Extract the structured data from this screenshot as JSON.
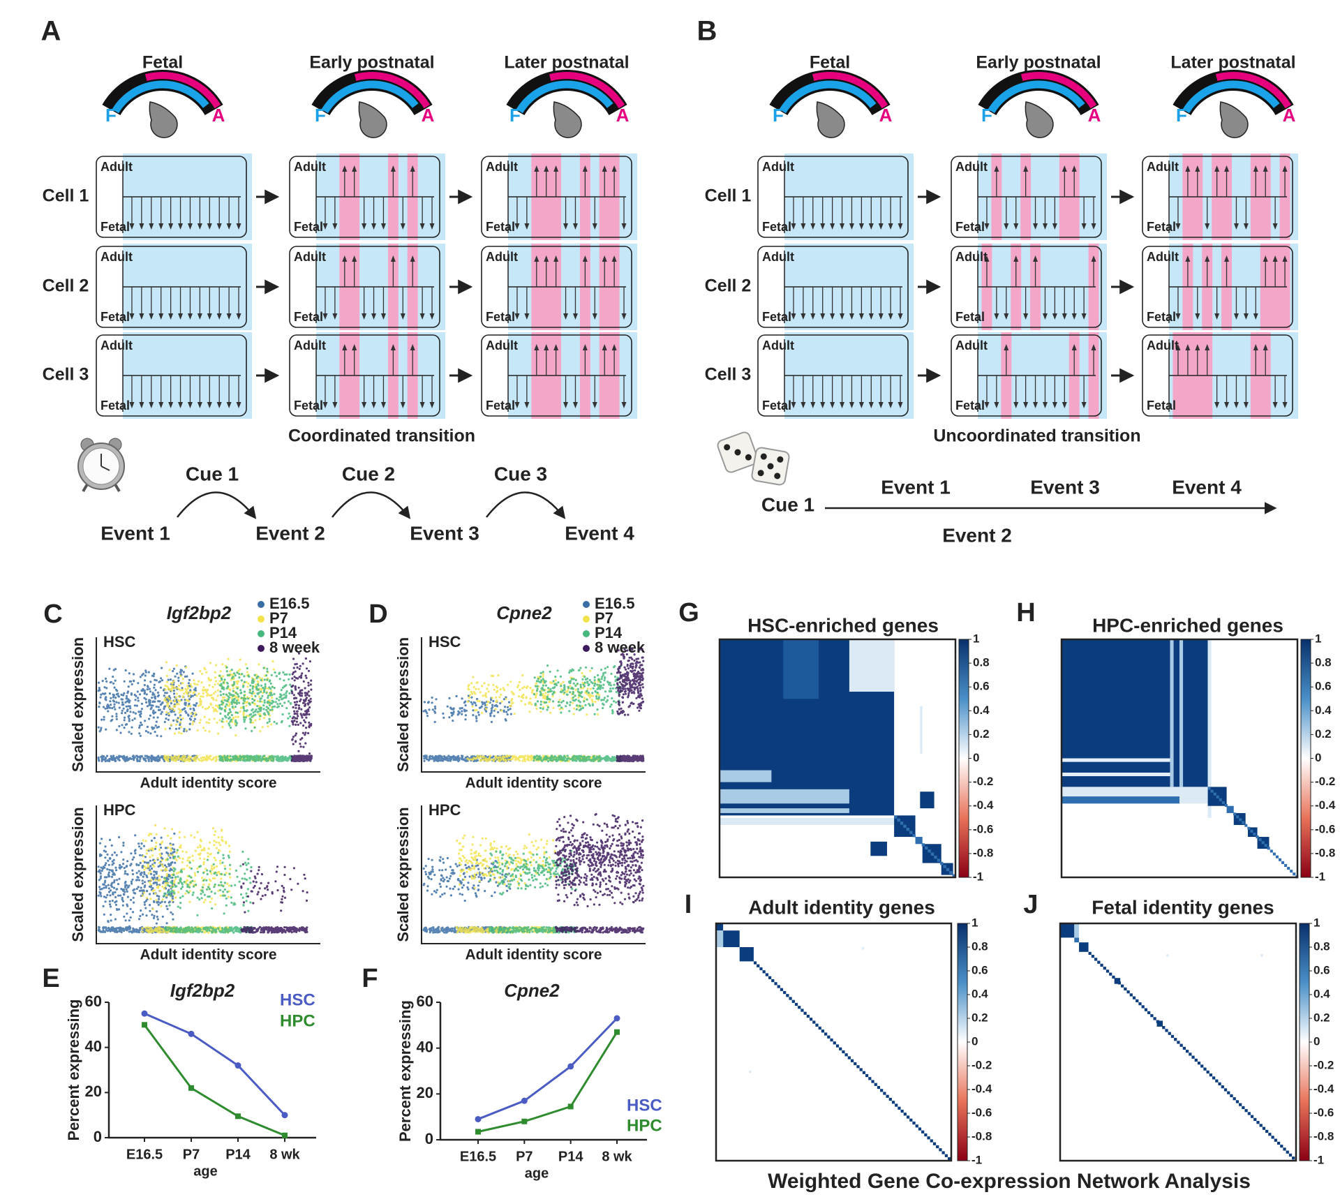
{
  "panel_A": {
    "label": "A",
    "stages": [
      "Fetal",
      "Early postnatal",
      "Later postnatal"
    ],
    "dial": [
      "F",
      "A"
    ],
    "cells": [
      "Cell 1",
      "Cell 2",
      "Cell 3"
    ],
    "box_labels": [
      "Adult",
      "Fetal"
    ],
    "caption": "Coordinated transition",
    "cues": [
      "Cue 1",
      "Cue 2",
      "Cue 3"
    ],
    "events": [
      "Event 1",
      "Event 2",
      "Event 3",
      "Event 4"
    ]
  },
  "panel_B": {
    "label": "B",
    "stages": [
      "Fetal",
      "Early postnatal",
      "Later postnatal"
    ],
    "dial": [
      "F",
      "A"
    ],
    "cells": [
      "Cell 1",
      "Cell 2",
      "Cell 3"
    ],
    "box_labels": [
      "Adult",
      "Fetal"
    ],
    "caption": "Uncoordinated transition",
    "cue": "Cue 1",
    "events": [
      "Event 1",
      "Event 3",
      "Event 4"
    ],
    "event_below": "Event 2"
  },
  "scatter_panels": [
    {
      "label": "C",
      "gene": "Igf2bp2",
      "legend": [
        {
          "name": "E16.5",
          "color": "#3a6ea5"
        },
        {
          "name": "P7",
          "color": "#f2e34c"
        },
        {
          "name": "P14",
          "color": "#45b87c"
        },
        {
          "name": "8 week",
          "color": "#3d1a5e"
        }
      ],
      "rows": [
        "HSC",
        "HPC"
      ],
      "ylabel": "Scaled expression",
      "xlabel": "Adult identity score"
    },
    {
      "label": "D",
      "gene": "Cpne2",
      "legend": [
        {
          "name": "E16.5",
          "color": "#3a6ea5"
        },
        {
          "name": "P7",
          "color": "#f2e34c"
        },
        {
          "name": "P14",
          "color": "#45b87c"
        },
        {
          "name": "8 week",
          "color": "#3d1a5e"
        }
      ],
      "rows": [
        "HSC",
        "HPC"
      ],
      "ylabel": "Scaled expression",
      "xlabel": "Adult identity score"
    }
  ],
  "chart_data": [
    {
      "type": "line",
      "label": "E",
      "title": "Igf2bp2",
      "xlabel": "age",
      "ylabel": "Percent expressing",
      "categories": [
        "E16.5",
        "P7",
        "P14",
        "8 wk"
      ],
      "ylim": [
        0,
        60
      ],
      "yticks": [
        0,
        20,
        40,
        60
      ],
      "legend": "upper right",
      "series": [
        {
          "name": "HSC",
          "color": "#4a5bc4",
          "values": [
            55,
            46,
            32,
            10
          ]
        },
        {
          "name": "HPC",
          "color": "#2e8b2e",
          "values": [
            50,
            22,
            9.5,
            1
          ]
        }
      ]
    },
    {
      "type": "line",
      "label": "F",
      "title": "Cpne2",
      "xlabel": "age",
      "ylabel": "Percent expressing",
      "categories": [
        "E16.5",
        "P7",
        "P14",
        "8 wk"
      ],
      "ylim": [
        0,
        60
      ],
      "yticks": [
        0,
        20,
        40,
        60
      ],
      "legend": "lower right",
      "series": [
        {
          "name": "HSC",
          "color": "#4a5bc4",
          "values": [
            9,
            17,
            32,
            53
          ]
        },
        {
          "name": "HPC",
          "color": "#2e8b2e",
          "values": [
            3.5,
            8,
            14.5,
            47
          ]
        }
      ]
    }
  ],
  "heatmaps": {
    "colorbar_ticks": [
      1,
      0.8,
      0.6,
      0.4,
      0.2,
      0,
      -0.2,
      -0.4,
      -0.6,
      -0.8,
      -1
    ],
    "panels": [
      {
        "label": "G",
        "title": "HSC-enriched genes"
      },
      {
        "label": "H",
        "title": "HPC-enriched genes"
      },
      {
        "label": "I",
        "title": "Adult identity genes"
      },
      {
        "label": "J",
        "title": "Fetal identity genes"
      }
    ],
    "footer": "Weighted Gene Co-expression Network Analysis"
  }
}
